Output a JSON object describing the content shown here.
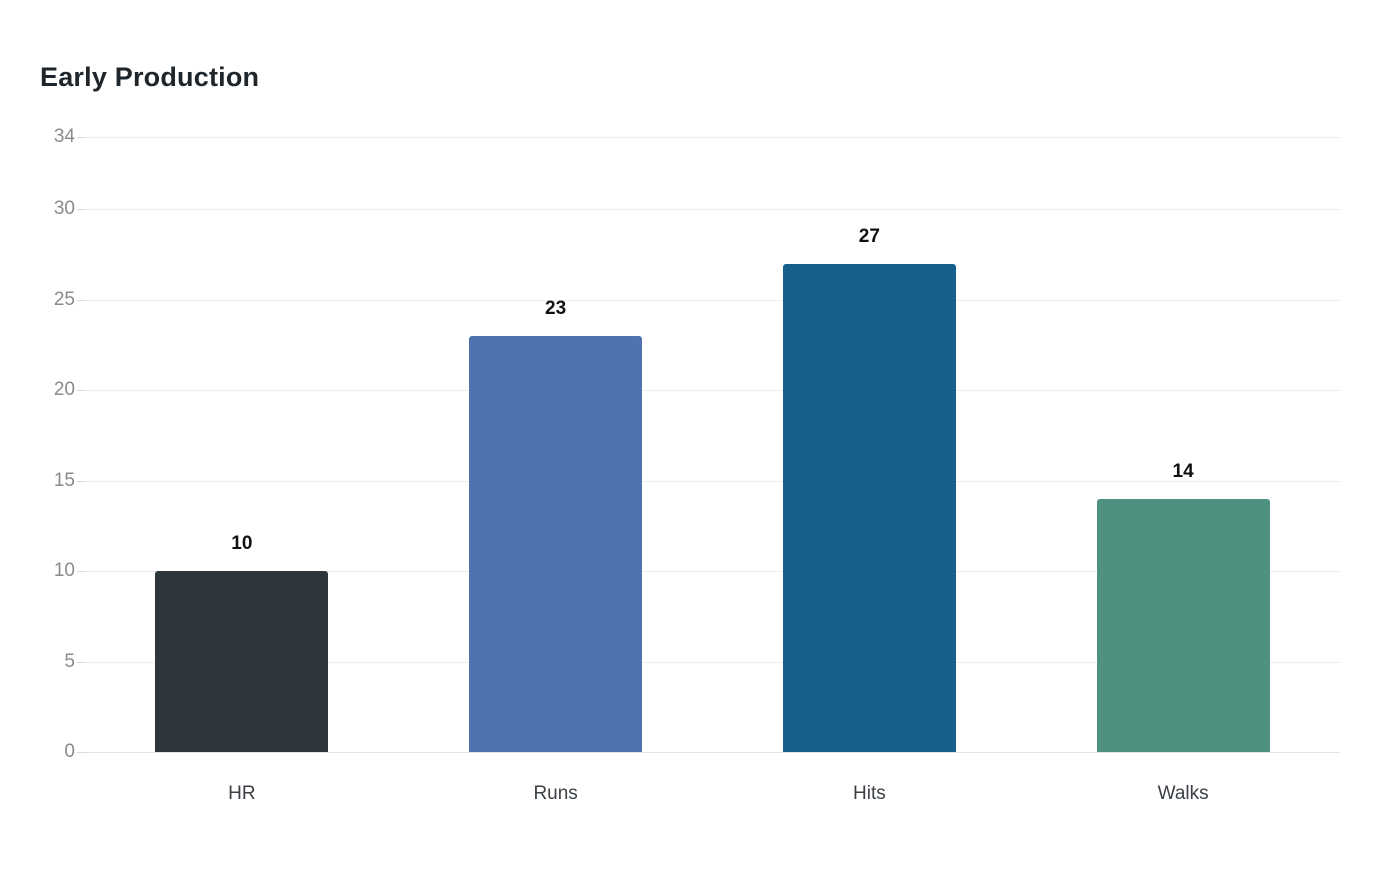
{
  "chart_data": {
    "type": "bar",
    "title": "Early Production",
    "categories": [
      "HR",
      "Runs",
      "Hits",
      "Walks"
    ],
    "values": [
      10,
      23,
      27,
      14
    ],
    "bar_colors": [
      "#2d363b",
      "#4e73ae",
      "#17608e",
      "#4f9180"
    ],
    "yticks": [
      0,
      5,
      10,
      15,
      20,
      25,
      30,
      34
    ],
    "ylim": [
      0,
      34
    ],
    "xlabel": "",
    "ylabel": "",
    "grid": true,
    "legend": "none",
    "background": "#ffffff",
    "value_labels_shown": true
  }
}
